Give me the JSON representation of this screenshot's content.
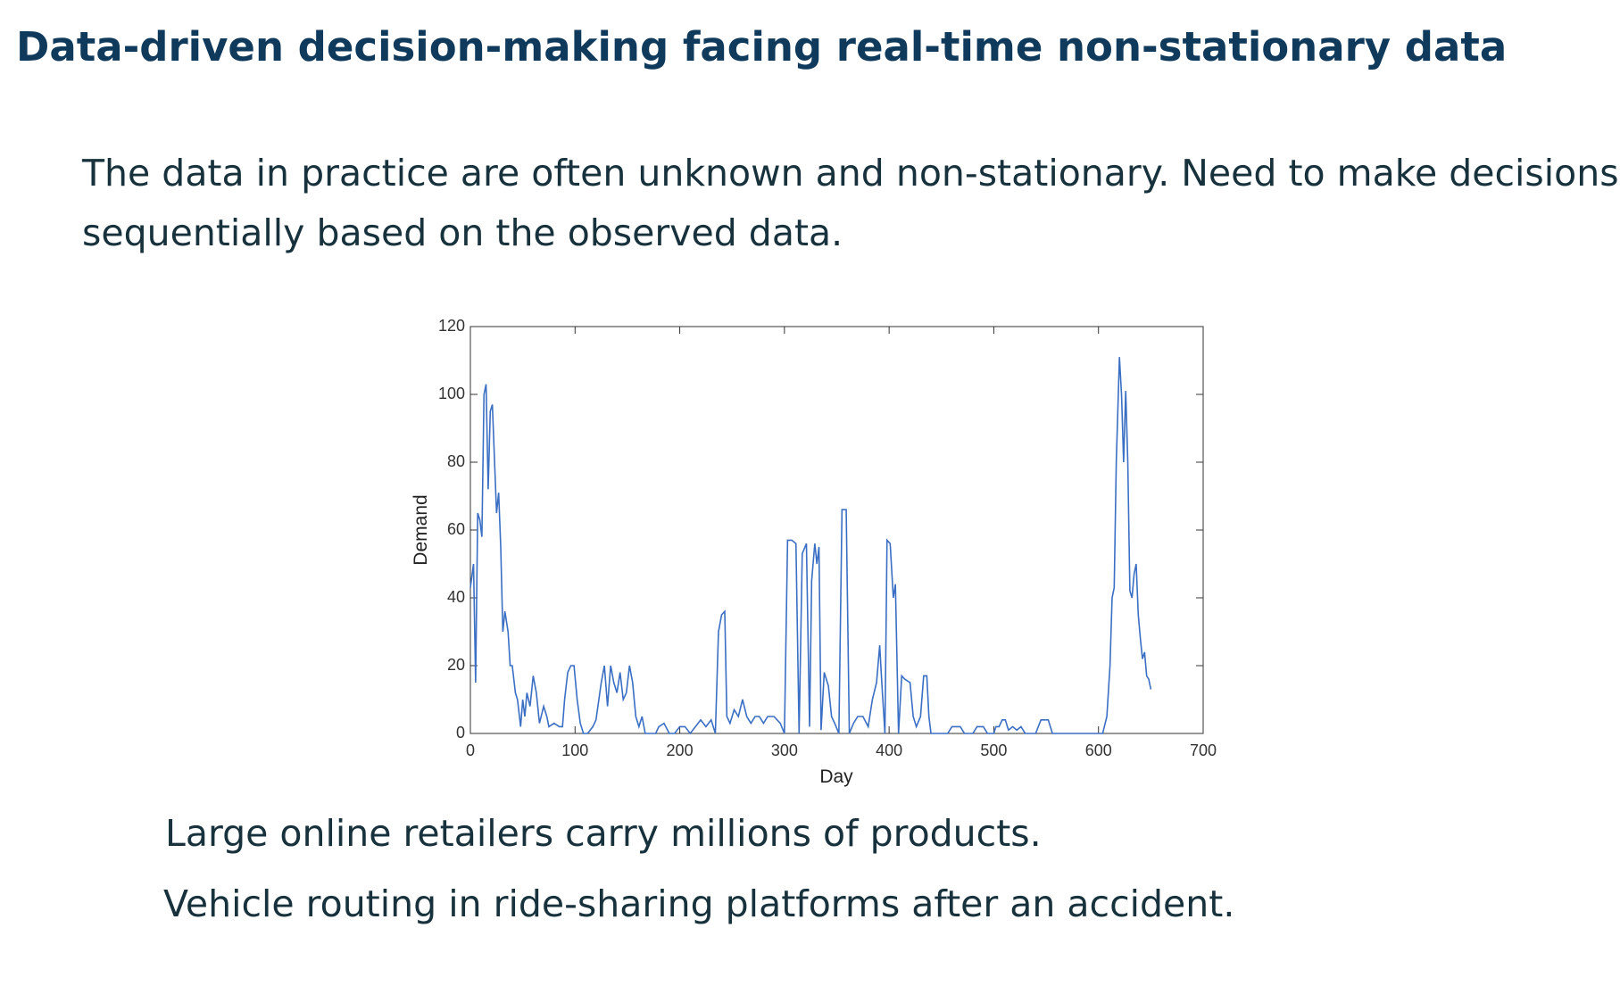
{
  "header": {
    "title": "Data-driven decision-making facing real-time non-stationary data"
  },
  "body": {
    "lines": [
      "The data in practice are often unknown and non-stationary. Need to make decisions",
      "sequentially based on the observed data."
    ]
  },
  "items": [
    "Large online retailers carry millions of products.",
    "Vehicle routing in ride-sharing platforms after an accident."
  ],
  "chart_data": {
    "type": "line",
    "xlabel": "Day",
    "ylabel": "Demand",
    "color": "#3b6fc4",
    "xlim": [
      0,
      700
    ],
    "ylim": [
      0,
      120
    ],
    "xticks": [
      0,
      100,
      200,
      300,
      400,
      500,
      600,
      700
    ],
    "yticks": [
      0,
      20,
      40,
      60,
      80,
      100,
      120
    ],
    "x": [
      0,
      3,
      5,
      7,
      9,
      11,
      13,
      15,
      17,
      19,
      21,
      25,
      27,
      29,
      31,
      33,
      36,
      38,
      40,
      43,
      45,
      48,
      50,
      52,
      54,
      57,
      60,
      63,
      66,
      70,
      73,
      75,
      80,
      85,
      88,
      90,
      93,
      96,
      99,
      102,
      105,
      108,
      112,
      117,
      120,
      125,
      128,
      131,
      134,
      137,
      140,
      143,
      146,
      149,
      152,
      155,
      158,
      161,
      164,
      167,
      172,
      177,
      180,
      185,
      190,
      195,
      200,
      205,
      210,
      215,
      220,
      225,
      230,
      234,
      237,
      240,
      243,
      245,
      248,
      252,
      256,
      260,
      264,
      268,
      272,
      276,
      280,
      284,
      290,
      296,
      300,
      303,
      307,
      311,
      314,
      317,
      321,
      324,
      326,
      329,
      331,
      333,
      335,
      338,
      342,
      345,
      348,
      352,
      355,
      359,
      362,
      366,
      370,
      375,
      380,
      384,
      388,
      391,
      393,
      396,
      398,
      401,
      404,
      406,
      409,
      412,
      415,
      420,
      423,
      426,
      430,
      433,
      436,
      438,
      440,
      446,
      456,
      460,
      468,
      472,
      480,
      484,
      490,
      494,
      500,
      502,
      505,
      508,
      511,
      514,
      518,
      522,
      526,
      530,
      540,
      545,
      552,
      556,
      600,
      604,
      608,
      611,
      613,
      615,
      617,
      620,
      622,
      624,
      626,
      628,
      630,
      632,
      634,
      636,
      638,
      640,
      642,
      644,
      646,
      648,
      650
    ],
    "values": [
      43,
      50,
      15,
      65,
      63,
      58,
      100,
      103,
      72,
      95,
      97,
      65,
      71,
      55,
      30,
      36,
      30,
      20,
      20,
      12,
      10,
      2,
      10,
      5,
      12,
      8,
      17,
      12,
      3,
      8,
      5,
      2,
      3,
      2,
      2,
      10,
      18,
      20,
      20,
      10,
      3,
      0,
      0,
      2,
      4,
      15,
      20,
      8,
      20,
      15,
      12,
      18,
      10,
      12,
      20,
      15,
      5,
      2,
      5,
      0,
      0,
      0,
      2,
      3,
      0,
      0,
      2,
      2,
      0,
      2,
      4,
      2,
      4,
      0,
      30,
      35,
      36,
      5,
      3,
      7,
      5,
      10,
      5,
      3,
      5,
      5,
      3,
      5,
      5,
      3,
      0,
      57,
      57,
      56,
      0,
      53,
      56,
      2,
      45,
      56,
      50,
      55,
      1,
      18,
      14,
      5,
      3,
      0,
      66,
      66,
      0,
      3,
      5,
      5,
      2,
      10,
      15,
      26,
      15,
      0,
      57,
      56,
      40,
      44,
      0,
      17,
      16,
      15,
      5,
      2,
      5,
      17,
      17,
      5,
      0,
      0,
      0,
      2,
      2,
      0,
      0,
      2,
      2,
      0,
      0,
      2,
      2,
      4,
      4,
      1,
      2,
      1,
      2,
      0,
      0,
      4,
      4,
      0,
      0,
      0,
      5,
      20,
      40,
      43,
      80,
      111,
      100,
      80,
      101,
      80,
      42,
      40,
      47,
      50,
      35,
      28,
      22,
      24,
      17,
      16,
      13
    ]
  }
}
